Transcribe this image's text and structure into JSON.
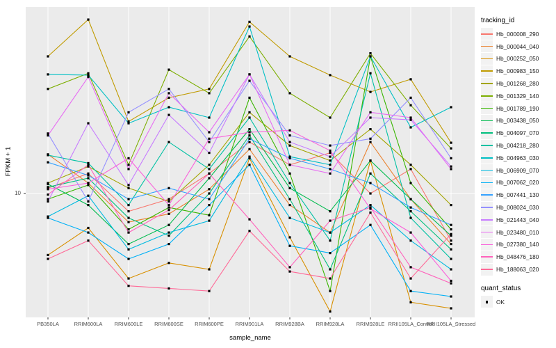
{
  "legend": {
    "title": "tracking_id"
  },
  "legend2": {
    "title": "quant_status",
    "items": [
      {
        "label": "OK",
        "marker": "black-square"
      }
    ]
  },
  "chart_data": {
    "type": "line",
    "title": "",
    "xlabel": "sample_name",
    "ylabel": "FPKM + 1",
    "y_scale": "log10",
    "ylim": [
      3.2,
      55
    ],
    "y_major_ticks": [
      10
    ],
    "y_tick_label": "10",
    "grid": "white-on-gray-panel",
    "legend_position": "right",
    "panel_color": "#EBEBEB",
    "point_marker": "black-square",
    "categories": [
      "PB350LA",
      "RRIM600LA",
      "RRIM600LE",
      "RRIM600SE",
      "RRIM600PE",
      "RRIM901LA",
      "RRIM928BA",
      "RRIM928LA",
      "RRIM928LE",
      "RRII105LA_Control",
      "RRII105LA_Stressed"
    ],
    "series": [
      {
        "name": "Hb_000008_290",
        "color": "#F8766D",
        "values": [
          10.5,
          12.0,
          8.5,
          9.5,
          12.0,
          16.0,
          13.0,
          14.5,
          10.0,
          12.5,
          6.5
        ]
      },
      {
        "name": "Hb_000044_040",
        "color": "#EA8331",
        "values": [
          14.3,
          11.0,
          7.7,
          8.3,
          10.4,
          15.0,
          9.0,
          7.0,
          16.0,
          9.5,
          6.3
        ]
      },
      {
        "name": "Hb_000252_050",
        "color": "#D89000",
        "values": [
          5.7,
          7.3,
          4.6,
          5.3,
          5.0,
          13.8,
          6.7,
          3.4,
          13.5,
          3.7,
          3.5
        ]
      },
      {
        "name": "Hb_000983_150",
        "color": "#C09B00",
        "values": [
          35.0,
          49.0,
          19.3,
          24.0,
          26.0,
          48.0,
          35.0,
          29.5,
          25.3,
          28.4,
          15.9
        ]
      },
      {
        "name": "Hb_001268_280",
        "color": "#A3A500",
        "values": [
          11.0,
          12.8,
          10.5,
          9.3,
          13.0,
          21.0,
          15.5,
          13.5,
          18.0,
          13.0,
          9.0
        ]
      },
      {
        "name": "Hb_001329_140",
        "color": "#7CAE00",
        "values": [
          26.0,
          30.0,
          13.0,
          31.0,
          25.0,
          42.0,
          25.0,
          20.0,
          36.0,
          22.4,
          15.1
        ]
      },
      {
        "name": "Hb_001789_190",
        "color": "#39B600",
        "values": [
          9.5,
          10.8,
          7.2,
          8.8,
          8.2,
          24.0,
          12.0,
          4.1,
          35.0,
          11.0,
          7.2
        ]
      },
      {
        "name": "Hb_003438_050",
        "color": "#00BB4E",
        "values": [
          10.9,
          9.0,
          6.3,
          7.5,
          11.5,
          18.0,
          10.5,
          8.5,
          13.5,
          9.5,
          6.8
        ]
      },
      {
        "name": "Hb_004097_070",
        "color": "#00BF7D",
        "values": [
          10.6,
          11.5,
          8.0,
          6.8,
          10.0,
          17.0,
          9.5,
          5.0,
          12.0,
          8.5,
          6.0
        ]
      },
      {
        "name": "Hb_004218_280",
        "color": "#00C1A3",
        "values": [
          14.2,
          13.2,
          9.0,
          16.0,
          12.5,
          20.0,
          11.0,
          6.5,
          30.0,
          8.0,
          5.5
        ]
      },
      {
        "name": "Hb_004963_030",
        "color": "#00BFC4",
        "values": [
          29.7,
          29.5,
          19.0,
          22.0,
          20.0,
          46.0,
          14.0,
          13.0,
          35.0,
          18.3,
          22.0
        ]
      },
      {
        "name": "Hb_006909_070",
        "color": "#00BAE0",
        "values": [
          8.1,
          9.8,
          6.0,
          7.0,
          7.8,
          14.0,
          8.0,
          7.0,
          9.0,
          6.5,
          5.0
        ]
      },
      {
        "name": "Hb_007062_020",
        "color": "#00B0F6",
        "values": [
          8.0,
          7.0,
          5.5,
          6.3,
          9.0,
          13.0,
          6.2,
          5.8,
          7.5,
          4.1,
          3.9
        ]
      },
      {
        "name": "Hb_007441_130",
        "color": "#35A2FF",
        "values": [
          13.3,
          11.8,
          9.5,
          10.5,
          9.5,
          16.5,
          13.8,
          12.5,
          11.0,
          8.8,
          7.5
        ]
      },
      {
        "name": "Hb_008024_030",
        "color": "#9590FF",
        "values": [
          17.3,
          9.3,
          21.0,
          26.0,
          16.0,
          28.0,
          17.0,
          15.5,
          16.5,
          24.0,
          13.8
        ]
      },
      {
        "name": "Hb_021443_040",
        "color": "#C77CFF",
        "values": [
          9.3,
          19.0,
          10.8,
          20.5,
          14.5,
          29.7,
          16.0,
          14.0,
          20.0,
          19.6,
          12.8
        ]
      },
      {
        "name": "Hb_023480_010",
        "color": "#E76BF3",
        "values": [
          17.0,
          29.0,
          12.5,
          25.0,
          17.5,
          29.7,
          13.0,
          12.0,
          21.0,
          20.0,
          12.5
        ]
      },
      {
        "name": "Hb_027380_140",
        "color": "#FA62DB",
        "values": [
          10.4,
          11.0,
          13.8,
          9.0,
          16.5,
          17.5,
          17.8,
          14.8,
          8.7,
          7.0,
          4.5
        ]
      },
      {
        "name": "Hb_048476_180",
        "color": "#FF62BC",
        "values": [
          9.9,
          13.0,
          7.0,
          8.6,
          12.0,
          7.9,
          5.1,
          7.8,
          8.8,
          5.1,
          4.4
        ]
      },
      {
        "name": "Hb_188063_020",
        "color": "#FF6A98",
        "values": [
          5.5,
          6.5,
          4.3,
          4.2,
          4.1,
          7.1,
          4.9,
          4.6,
          8.4,
          4.6,
          6.9
        ]
      }
    ]
  }
}
